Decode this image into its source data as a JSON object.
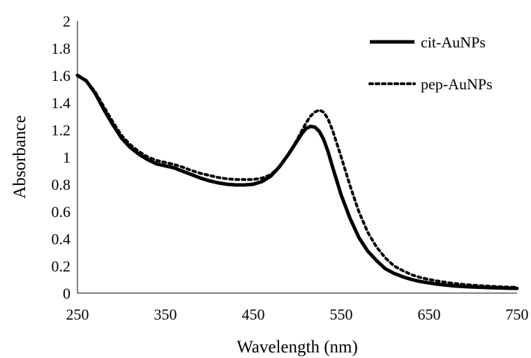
{
  "chart_data": {
    "type": "line",
    "xlabel": "Wavelength (nm)",
    "ylabel": "Absorbance",
    "xlim": [
      250,
      750
    ],
    "ylim": [
      0,
      2
    ],
    "x_ticks": [
      "250",
      "350",
      "450",
      "550",
      "650",
      "750"
    ],
    "y_ticks": [
      "0",
      "0.2",
      "0.4",
      "0.6",
      "0.8",
      "1",
      "1.2",
      "1.4",
      "1.6",
      "1.8",
      "2"
    ],
    "grid": false,
    "legend_position": "top-right",
    "series": [
      {
        "name": "cit-AuNPs",
        "style": "solid",
        "color": "#000000",
        "x": [
          250,
          260,
          270,
          280,
          290,
          300,
          310,
          320,
          330,
          340,
          350,
          360,
          370,
          380,
          390,
          400,
          410,
          420,
          430,
          440,
          450,
          460,
          470,
          480,
          490,
          500,
          505,
          510,
          515,
          520,
          525,
          530,
          535,
          540,
          550,
          560,
          570,
          580,
          590,
          600,
          610,
          620,
          630,
          640,
          650,
          660,
          670,
          680,
          690,
          700,
          710,
          720,
          730,
          740,
          750
        ],
        "y": [
          1.6,
          1.56,
          1.47,
          1.35,
          1.24,
          1.14,
          1.07,
          1.02,
          0.98,
          0.95,
          0.935,
          0.92,
          0.895,
          0.87,
          0.845,
          0.825,
          0.81,
          0.8,
          0.795,
          0.795,
          0.8,
          0.82,
          0.86,
          0.93,
          1.02,
          1.12,
          1.17,
          1.21,
          1.225,
          1.22,
          1.19,
          1.13,
          1.04,
          0.93,
          0.72,
          0.55,
          0.41,
          0.31,
          0.24,
          0.18,
          0.145,
          0.12,
          0.1,
          0.085,
          0.075,
          0.065,
          0.058,
          0.052,
          0.048,
          0.045,
          0.042,
          0.04,
          0.038,
          0.036,
          0.035
        ]
      },
      {
        "name": "pep-AuNPs",
        "style": "dotted",
        "color": "#000000",
        "x": [
          250,
          260,
          270,
          280,
          290,
          300,
          310,
          320,
          330,
          340,
          350,
          360,
          370,
          380,
          390,
          400,
          410,
          420,
          430,
          440,
          450,
          460,
          470,
          480,
          490,
          500,
          505,
          510,
          515,
          520,
          525,
          530,
          535,
          540,
          550,
          560,
          570,
          580,
          590,
          600,
          610,
          620,
          630,
          640,
          650,
          660,
          670,
          680,
          690,
          700,
          710,
          720,
          730,
          740,
          750
        ],
        "y": [
          1.6,
          1.56,
          1.48,
          1.37,
          1.26,
          1.16,
          1.09,
          1.04,
          1.0,
          0.975,
          0.96,
          0.945,
          0.925,
          0.9,
          0.88,
          0.865,
          0.85,
          0.84,
          0.835,
          0.835,
          0.835,
          0.845,
          0.87,
          0.93,
          1.02,
          1.13,
          1.19,
          1.25,
          1.3,
          1.33,
          1.345,
          1.33,
          1.28,
          1.2,
          1.0,
          0.79,
          0.6,
          0.45,
          0.34,
          0.26,
          0.2,
          0.165,
          0.135,
          0.115,
          0.1,
          0.088,
          0.078,
          0.07,
          0.063,
          0.058,
          0.054,
          0.05,
          0.047,
          0.044,
          0.042
        ]
      }
    ]
  }
}
